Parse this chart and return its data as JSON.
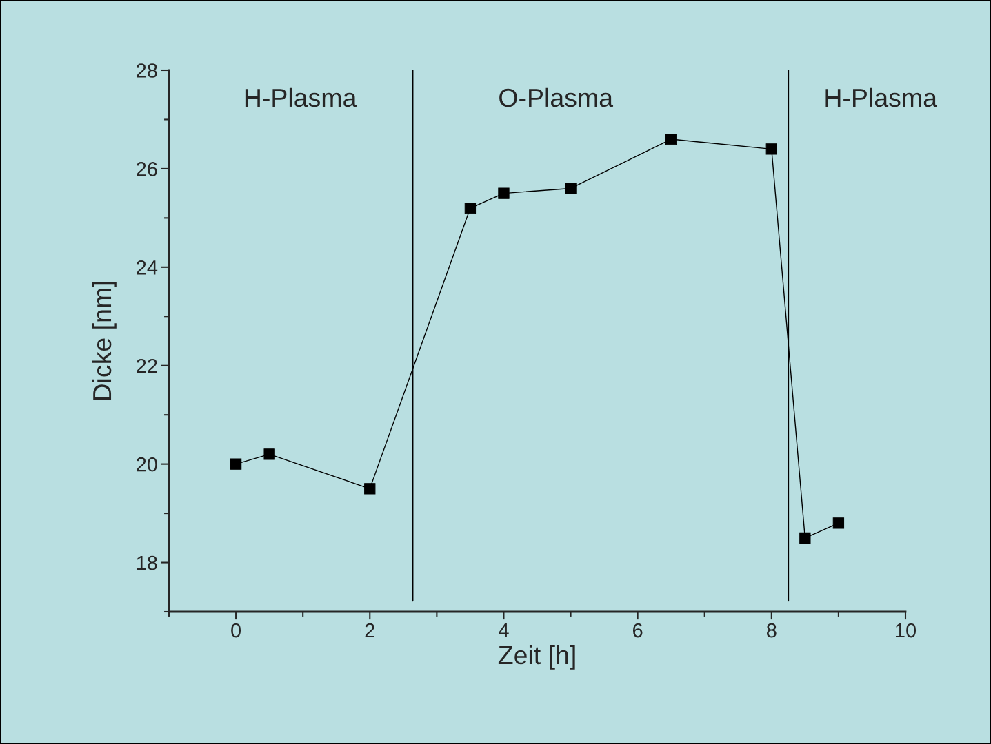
{
  "chart_data": {
    "type": "line",
    "xlabel": "Zeit [h]",
    "ylabel": "Dicke [nm]",
    "x": [
      0,
      0.5,
      2,
      3.5,
      4,
      5,
      6.5,
      8,
      8.5,
      9
    ],
    "series": [
      {
        "color": "#000000",
        "values": [
          20,
          20.2,
          19.5,
          25.2,
          25.5,
          25.6,
          26.6,
          26.4,
          18.5,
          18.8
        ]
      }
    ],
    "marker": "square",
    "line_style": "solid",
    "xlim": [
      -1,
      10
    ],
    "xticks": [
      0,
      2,
      4,
      6,
      8,
      10
    ],
    "ylim": [
      17,
      28
    ],
    "yticks": [
      18,
      20,
      22,
      24,
      26,
      28
    ],
    "ref_lines": [
      {
        "axis": "x",
        "value": 2.64,
        "color": "#000000"
      },
      {
        "axis": "x",
        "value": 8.25,
        "color": "#000000"
      }
    ],
    "annotations": [
      "H-Plasma",
      "O-Plasma",
      "H-Plasma"
    ],
    "grid": false,
    "legend": false
  }
}
